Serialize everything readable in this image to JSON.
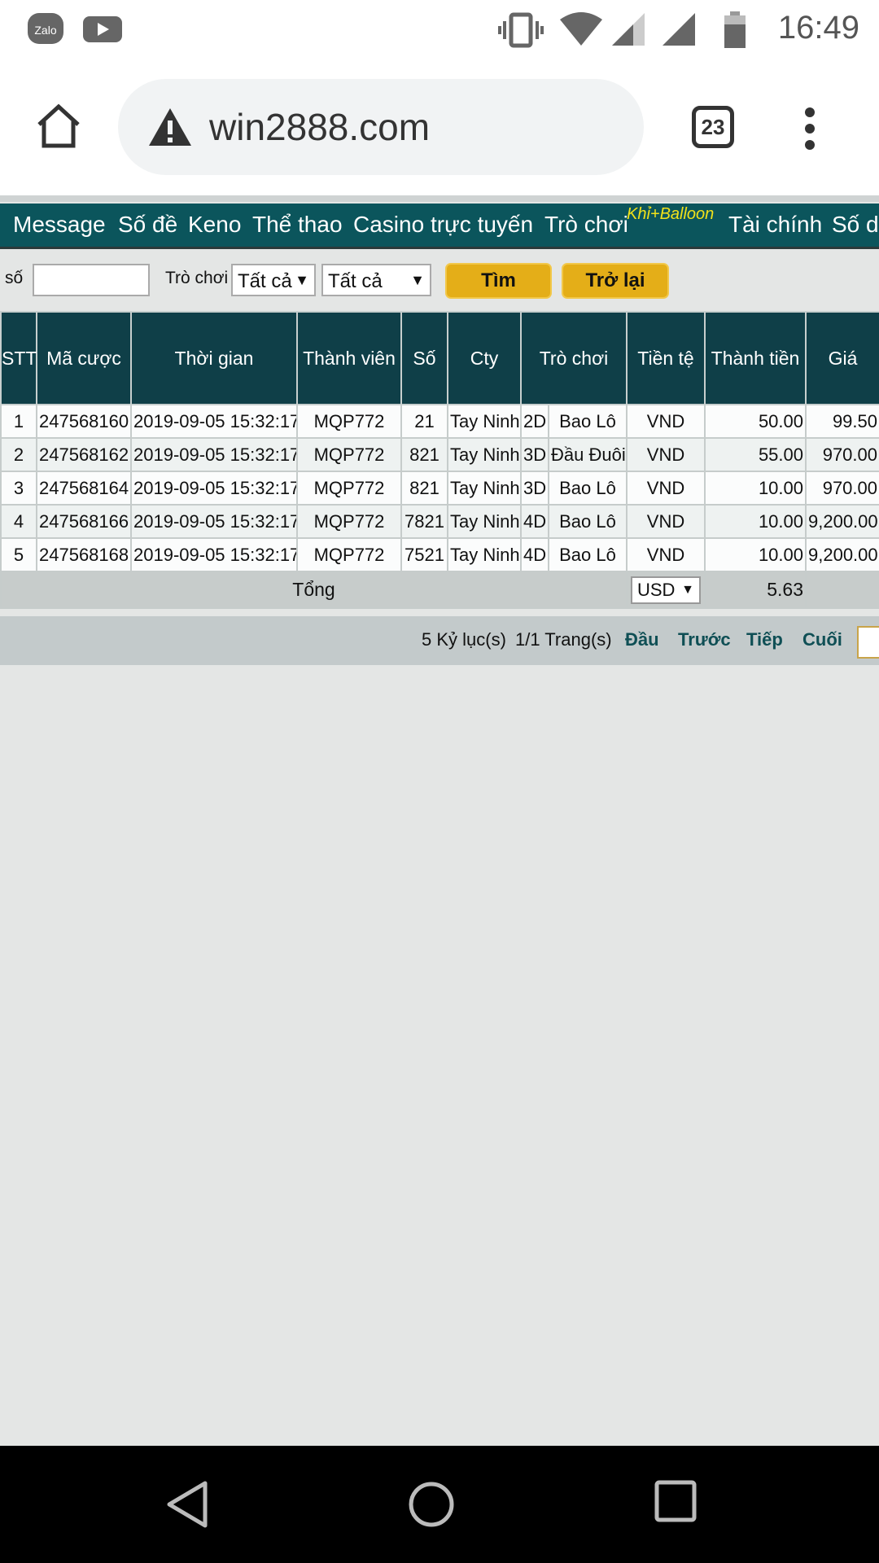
{
  "status_bar": {
    "time": "16:49",
    "icons": [
      "zalo-icon",
      "youtube-icon",
      "vibrate-icon",
      "wifi-icon",
      "signal-icon",
      "signal-icon",
      "battery-icon"
    ],
    "zalo_text": "Zalo"
  },
  "browser": {
    "url": "win2888.com",
    "tab_count": "23"
  },
  "nav": {
    "items": [
      "Message",
      "Số đề",
      "Keno",
      "Thể thao",
      "Casino trực tuyến",
      "Trò chơi",
      "Tài chính",
      "Số d"
    ],
    "badge": "Khỉ+Balloon"
  },
  "filter": {
    "number_label": "số",
    "number_value": "",
    "game_label": "Trò chơi",
    "select1": "Tất cả",
    "select2": "Tất cả",
    "search_button": "Tìm",
    "back_button": "Trở lại"
  },
  "table": {
    "headers": [
      "STT",
      "Mã cược",
      "Thời gian",
      "Thành viên",
      "Số",
      "Cty",
      "Trò chơi",
      "Tiền tệ",
      "Thành tiền",
      "Giá"
    ],
    "rows": [
      [
        "1",
        "247568160",
        "2019-09-05 15:32:17",
        "MQP772",
        "21",
        "Tay Ninh",
        "2D",
        "Bao Lô",
        "VND",
        "50.00",
        "99.50"
      ],
      [
        "2",
        "247568162",
        "2019-09-05 15:32:17",
        "MQP772",
        "821",
        "Tay Ninh",
        "3D",
        "Đầu Đuôi",
        "VND",
        "55.00",
        "970.00"
      ],
      [
        "3",
        "247568164",
        "2019-09-05 15:32:17",
        "MQP772",
        "821",
        "Tay Ninh",
        "3D",
        "Bao Lô",
        "VND",
        "10.00",
        "970.00"
      ],
      [
        "4",
        "247568166",
        "2019-09-05 15:32:17",
        "MQP772",
        "7821",
        "Tay Ninh",
        "4D",
        "Bao Lô",
        "VND",
        "10.00",
        "9,200.00"
      ],
      [
        "5",
        "247568168",
        "2019-09-05 15:32:17",
        "MQP772",
        "7521",
        "Tay Ninh",
        "4D",
        "Bao Lô",
        "VND",
        "10.00",
        "9,200.00"
      ]
    ],
    "total_label": "Tổng",
    "total_currency": "USD",
    "total_value": "5.63"
  },
  "pager": {
    "records": "5 Kỷ lục(s)",
    "pages": "1/1 Trang(s)",
    "first": "Đầu",
    "prev": "Trước",
    "next": "Tiếp",
    "last": "Cuối"
  },
  "colors": {
    "nav_bg": "#0b555c",
    "header_bg": "#0f3f48",
    "button": "#e4ae18",
    "badge": "#f2e21a"
  }
}
